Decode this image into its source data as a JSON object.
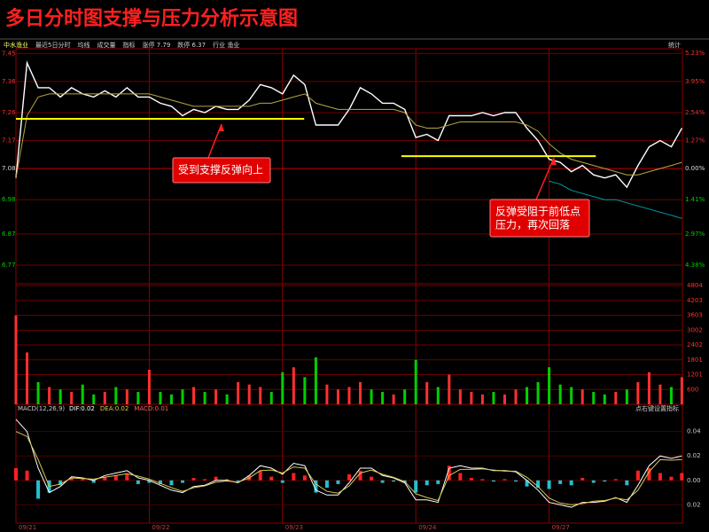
{
  "header": {
    "title": "多日分时图支撑与压力分析示意图",
    "toolbar": [
      "中水渔业",
      "最近5日分时",
      "均线",
      "成交量",
      "指标",
      "涨停 7.79",
      "跌停 6.37",
      "行业 渔业"
    ],
    "stats": "统计"
  },
  "chart_data": [
    {
      "type": "line",
      "x": [
        0,
        20,
        40,
        60,
        80,
        100,
        120,
        140,
        160,
        180,
        200,
        220,
        240,
        260,
        280,
        300,
        320,
        340,
        360,
        380,
        400,
        420,
        440,
        460,
        480,
        500,
        520,
        540,
        560,
        580,
        600,
        620,
        640,
        660,
        680,
        700,
        720,
        740,
        760,
        780,
        800,
        820,
        840,
        860,
        880,
        900,
        920,
        940,
        960,
        980,
        1000,
        1020,
        1040,
        1060,
        1080,
        1100,
        1120,
        1140,
        1160,
        1180,
        1199
      ],
      "xlim": [
        0,
        1200
      ],
      "ylim": [
        6.71,
        7.465
      ],
      "yticks": [
        7.45,
        7.36,
        7.26,
        7.17,
        7.08,
        6.98,
        6.87,
        6.77
      ],
      "y2lim": [
        -5.23,
        5.44
      ],
      "y2ticks": [
        {
          "value": 5.23,
          "label": "5.23%"
        },
        {
          "value": 3.95,
          "label": "3.95%"
        },
        {
          "value": 2.54,
          "label": "2.54%"
        },
        {
          "value": 1.27,
          "label": "1.27%"
        },
        {
          "value": 0,
          "label": "0.00%"
        },
        {
          "value": -1.41,
          "label": "1.41%"
        },
        {
          "value": -2.97,
          "label": "2.97%"
        },
        {
          "value": -4.38,
          "label": "4.38%"
        }
      ],
      "grid": true,
      "up_color": "#ff3030",
      "down_color": "#00d000",
      "series": [
        {
          "color": "#ffffff",
          "values": [
            7.05,
            7.42,
            7.34,
            7.34,
            7.31,
            7.34,
            7.32,
            7.31,
            7.33,
            7.31,
            7.34,
            7.31,
            7.31,
            7.29,
            7.28,
            7.25,
            7.27,
            7.26,
            7.28,
            7.27,
            7.27,
            7.3,
            7.35,
            7.34,
            7.32,
            7.38,
            7.35,
            7.22,
            7.22,
            7.22,
            7.27,
            7.34,
            7.32,
            7.29,
            7.29,
            7.27,
            7.18,
            7.19,
            7.17,
            7.25,
            7.25,
            7.25,
            7.26,
            7.25,
            7.26,
            7.26,
            7.21,
            7.17,
            7.11,
            7.1,
            7.07,
            7.09,
            7.06,
            7.05,
            7.06,
            7.02,
            7.09,
            7.15,
            7.17,
            7.15,
            7.21
          ]
        },
        {
          "color": "#b5a642",
          "values": [
            7.05,
            7.25,
            7.31,
            7.32,
            7.32,
            7.32,
            7.32,
            7.32,
            7.32,
            7.32,
            7.32,
            7.32,
            7.32,
            7.31,
            7.3,
            7.29,
            7.28,
            7.28,
            7.28,
            7.28,
            7.28,
            7.28,
            7.29,
            7.29,
            7.3,
            7.31,
            7.32,
            7.29,
            7.28,
            7.27,
            7.27,
            7.27,
            7.27,
            7.27,
            7.27,
            7.26,
            7.22,
            7.21,
            7.21,
            7.22,
            7.23,
            7.23,
            7.23,
            7.23,
            7.23,
            7.23,
            7.22,
            7.2,
            7.16,
            7.13,
            7.11,
            7.1,
            7.09,
            7.08,
            7.07,
            7.06,
            7.06,
            7.07,
            7.08,
            7.09,
            7.1
          ]
        },
        {
          "color": "#00a0a8",
          "values": [
            null,
            null,
            null,
            null,
            null,
            null,
            null,
            null,
            null,
            null,
            null,
            null,
            null,
            null,
            null,
            null,
            null,
            null,
            null,
            null,
            null,
            null,
            null,
            null,
            null,
            null,
            null,
            null,
            null,
            null,
            null,
            null,
            null,
            null,
            null,
            null,
            null,
            null,
            null,
            null,
            null,
            null,
            null,
            null,
            null,
            null,
            null,
            null,
            7.04,
            7.03,
            7.01,
            7.0,
            6.99,
            6.98,
            6.98,
            6.97,
            6.96,
            6.95,
            6.94,
            6.93,
            6.92
          ]
        }
      ],
      "support_levels": [
        {
          "value": 7.24,
          "x": [
            0,
            519
          ],
          "color": "#ffff00"
        },
        {
          "value": 7.12,
          "x": [
            694,
            1044
          ],
          "color": "#ffff00"
        }
      ],
      "annotations": [
        {
          "lines": [
            "受到支撑反弹向上"
          ]
        },
        {
          "lines": [
            "反弹受阻于前低点",
            "压力，再次回落"
          ]
        }
      ]
    },
    {
      "type": "bar",
      "values": [
        3600,
        2100,
        900,
        700,
        600,
        500,
        800,
        400,
        500,
        700,
        600,
        500,
        1400,
        500,
        400,
        600,
        700,
        500,
        600,
        400,
        900,
        800,
        700,
        500,
        1300,
        1500,
        1100,
        1900,
        800,
        600,
        700,
        900,
        600,
        500,
        400,
        600,
        1800,
        900,
        700,
        1200,
        600,
        500,
        400,
        500,
        400,
        600,
        700,
        900,
        1500,
        800,
        700,
        600,
        500,
        400,
        500,
        600,
        900,
        1300,
        800,
        700,
        1100
      ],
      "ylim": [
        0,
        4880
      ],
      "yticks": [
        4804,
        4203,
        3603,
        3002,
        2402,
        1801,
        1201,
        600
      ]
    },
    {
      "type": "macd",
      "title": "MACD(12,26,9)",
      "readouts": [
        "DIF:0.02",
        "DEA:0.02",
        "MACD:0.01"
      ],
      "note": "点右键设置指标",
      "histogram": [
        0.01,
        0.008,
        -0.015,
        -0.01,
        -0.004,
        0.002,
        0.001,
        -0.002,
        0.003,
        0.004,
        0.005,
        -0.003,
        -0.002,
        -0.003,
        -0.004,
        -0.002,
        0.002,
        0.001,
        0.003,
        0.001,
        -0.001,
        0.004,
        0.008,
        0.003,
        -0.002,
        0.006,
        0.004,
        -0.01,
        -0.006,
        -0.003,
        0.005,
        0.008,
        0.003,
        -0.002,
        -0.001,
        -0.002,
        -0.01,
        -0.004,
        -0.003,
        0.012,
        0.006,
        0.002,
        0.001,
        -0.001,
        0.001,
        -0.001,
        -0.005,
        -0.006,
        -0.007,
        -0.003,
        -0.004,
        0.002,
        -0.002,
        -0.001,
        0.001,
        -0.004,
        0.008,
        0.01,
        0.006,
        0.003,
        0.006
      ],
      "dif": [
        0.05,
        0.04,
        0.01,
        -0.01,
        -0.005,
        0.003,
        0.002,
        0.0,
        0.004,
        0.006,
        0.008,
        0.002,
        0.0,
        -0.004,
        -0.008,
        -0.01,
        -0.005,
        -0.004,
        0.0,
        0.0,
        -0.002,
        0.004,
        0.012,
        0.01,
        0.005,
        0.014,
        0.012,
        -0.008,
        -0.012,
        -0.012,
        -0.002,
        0.01,
        0.01,
        0.004,
        0.002,
        -0.002,
        -0.016,
        -0.016,
        -0.018,
        0.01,
        0.012,
        0.01,
        0.01,
        0.008,
        0.008,
        0.007,
        0.0,
        -0.008,
        -0.018,
        -0.02,
        -0.022,
        -0.018,
        -0.018,
        -0.017,
        -0.014,
        -0.018,
        -0.004,
        0.012,
        0.02,
        0.018,
        0.02
      ],
      "dea": [
        0.04,
        0.036,
        0.017,
        -0.005,
        -0.003,
        0.002,
        0.0015,
        0.001,
        0.0025,
        0.004,
        0.0055,
        0.0035,
        0.001,
        -0.0025,
        -0.006,
        -0.009,
        -0.006,
        -0.0045,
        -0.0015,
        -0.0005,
        -0.0015,
        0.002,
        0.008,
        0.0085,
        0.006,
        0.011,
        0.01,
        -0.003,
        -0.009,
        -0.0105,
        -0.0045,
        0.006,
        0.0085,
        0.005,
        0.0025,
        -0.001,
        -0.011,
        -0.014,
        -0.0165,
        0.004,
        0.009,
        0.009,
        0.0095,
        0.0085,
        0.0075,
        0.0075,
        0.0025,
        -0.005,
        -0.0145,
        -0.0185,
        -0.02,
        -0.019,
        -0.017,
        -0.0165,
        -0.0145,
        -0.016,
        -0.008,
        0.007,
        0.017,
        0.0165,
        0.017
      ],
      "ylim": [
        -0.035,
        0.055
      ],
      "yticks": [
        0.04,
        0.02,
        {
          "value": 0,
          "label": "0.00"
        },
        {
          "value": -0.02,
          "label": "0.02"
        }
      ],
      "xticks": [
        {
          "value": 0,
          "label": "09/21"
        },
        {
          "value": 240,
          "label": "09/22"
        },
        {
          "value": 480,
          "label": "09/23"
        },
        {
          "value": 720,
          "label": "09/24"
        },
        {
          "value": 960,
          "label": "09/27"
        }
      ],
      "pos_color": "#ff2020",
      "neg_color": "#20c0d0",
      "dif_color": "#ffffff",
      "dea_color": "#d8c850"
    }
  ]
}
